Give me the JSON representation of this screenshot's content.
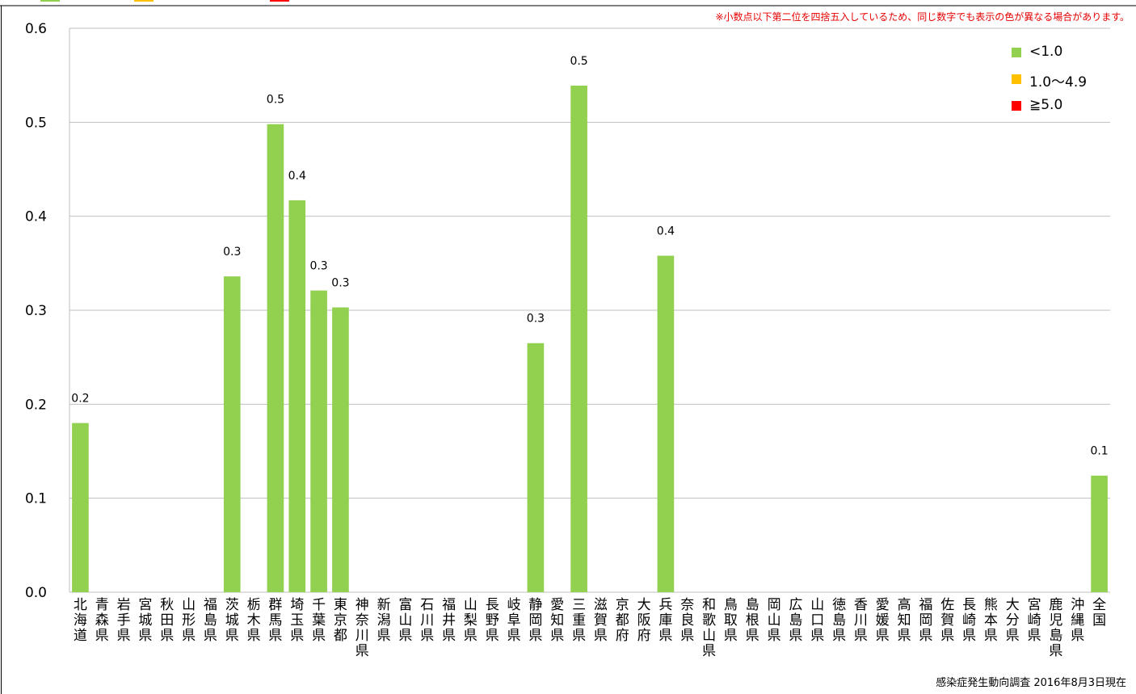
{
  "notice": "※小数点以下第二位を四捨五入しているため、同じ数字でも表示の色が異なる場合があります。",
  "source": "感染症発生動向調査 2016年8月3日現在",
  "legend": [
    {
      "label": "<1.0",
      "color": "#92d050"
    },
    {
      "label": "1.0〜4.9",
      "color": "#ffc000"
    },
    {
      "label": "≧5.0",
      "color": "#ff0000"
    }
  ],
  "top_marks": [
    {
      "color": "#92d050"
    },
    {
      "color": "#ffc000"
    },
    {
      "color": "#ff0000"
    }
  ],
  "chart_data": {
    "type": "bar",
    "ylim": [
      0,
      0.6
    ],
    "yticks": [
      "0.0",
      "0.1",
      "0.2",
      "0.3",
      "0.4",
      "0.5",
      "0.6"
    ],
    "grid": true,
    "legend_position": "top-right",
    "bar_color": "#92d050",
    "categories": [
      "北海道",
      "青森県",
      "岩手県",
      "宮城県",
      "秋田県",
      "山形県",
      "福島県",
      "茨城県",
      "栃木県",
      "群馬県",
      "埼玉県",
      "千葉県",
      "東京都",
      "神奈川県",
      "新潟県",
      "富山県",
      "石川県",
      "福井県",
      "山梨県",
      "長野県",
      "岐阜県",
      "静岡県",
      "愛知県",
      "三重県",
      "滋賀県",
      "京都府",
      "大阪府",
      "兵庫県",
      "奈良県",
      "和歌山県",
      "鳥取県",
      "島根県",
      "岡山県",
      "広島県",
      "山口県",
      "徳島県",
      "香川県",
      "愛媛県",
      "高知県",
      "福岡県",
      "佐賀県",
      "長崎県",
      "熊本県",
      "大分県",
      "宮崎県",
      "鹿児島県",
      "沖縄県",
      "全国"
    ],
    "values": [
      0.18,
      0,
      0,
      0,
      0,
      0,
      0,
      0.336,
      0,
      0.498,
      0.417,
      0.321,
      0.303,
      0,
      0,
      0,
      0,
      0,
      0,
      0,
      0,
      0.265,
      0,
      0.539,
      0,
      0,
      0,
      0.358,
      0,
      0,
      0,
      0,
      0,
      0,
      0,
      0,
      0,
      0,
      0,
      0,
      0,
      0,
      0,
      0,
      0,
      0,
      0,
      0.124
    ],
    "data_labels": [
      "0.2",
      "",
      "",
      "",
      "",
      "",
      "",
      "0.3",
      "",
      "0.5",
      "0.4",
      "0.3",
      "0.3",
      "",
      "",
      "",
      "",
      "",
      "",
      "",
      "",
      "0.3",
      "",
      "0.5",
      "",
      "",
      "",
      "0.4",
      "",
      "",
      "",
      "",
      "",
      "",
      "",
      "",
      "",
      "",
      "",
      "",
      "",
      "",
      "",
      "",
      "",
      "",
      "",
      "0.1"
    ]
  }
}
